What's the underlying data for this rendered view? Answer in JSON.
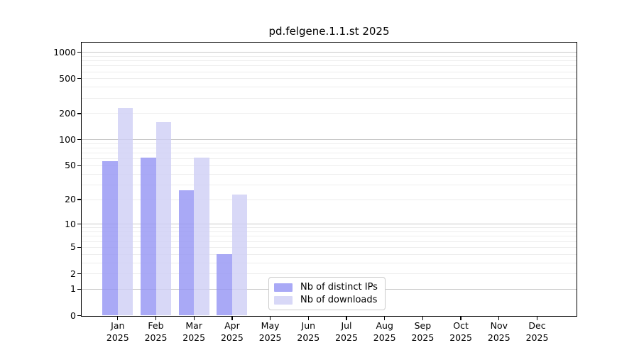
{
  "chart_data": {
    "type": "bar",
    "title": "pd.felgene.1.1.st 2025",
    "x_categories": [
      "Jan",
      "Feb",
      "Mar",
      "Apr",
      "May",
      "Jun",
      "Jul",
      "Aug",
      "Sep",
      "Oct",
      "Nov",
      "Dec"
    ],
    "x_year": "2025",
    "xlabel": "",
    "ylabel": "",
    "yticks": [
      0,
      1,
      2,
      5,
      10,
      20,
      50,
      100,
      200,
      500,
      1000
    ],
    "ylim": [
      0,
      1300
    ],
    "yscale": "log10(1+value)",
    "grid": {
      "minor": [
        2,
        3,
        4,
        5,
        6,
        7,
        8,
        9,
        20,
        30,
        40,
        50,
        60,
        70,
        80,
        90,
        200,
        300,
        400,
        500,
        600,
        700,
        800,
        900
      ],
      "major": [
        1,
        10,
        100,
        1000
      ],
      "minor_color": "#ededed",
      "major_color": "#c9c9c9"
    },
    "series": [
      {
        "key": "distinct-ips",
        "name": "Nb of distinct IPs",
        "color": "#9494f4cc",
        "values": [
          57,
          62,
          26,
          4,
          0,
          0,
          0,
          0,
          0,
          0,
          0,
          0
        ]
      },
      {
        "key": "downloads",
        "name": "Nb of downloads",
        "color": "#cecef5cc",
        "values": [
          233,
          160,
          62,
          23,
          0,
          0,
          0,
          0,
          0,
          0,
          0,
          0
        ]
      }
    ],
    "legend_position": "bottom-center"
  }
}
